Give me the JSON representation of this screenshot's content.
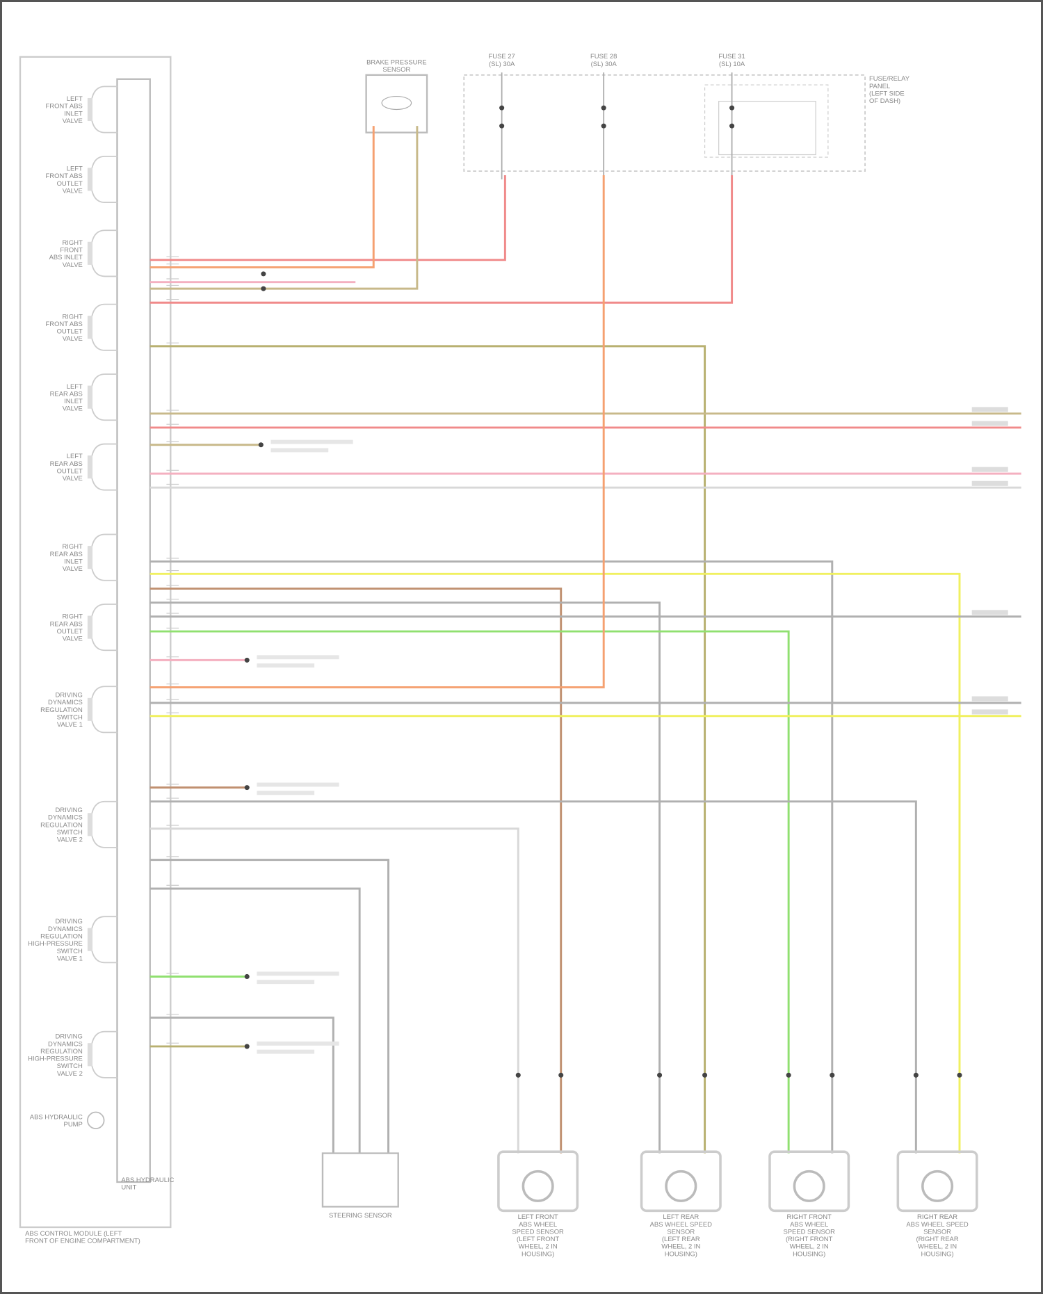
{
  "diagram": {
    "valves": [
      [
        "LEFT",
        "FRONT ABS",
        "INLET",
        "VALVE"
      ],
      [
        "LEFT",
        "FRONT ABS",
        "OUTLET",
        "VALVE"
      ],
      [
        "RIGHT",
        "FRONT",
        "ABS INLET",
        "VALVE"
      ],
      [
        "RIGHT",
        "FRONT ABS",
        "OUTLET",
        "VALVE"
      ],
      [
        "LEFT",
        "REAR ABS",
        "INLET",
        "VALVE"
      ],
      [
        "LEFT",
        "REAR ABS",
        "OUTLET",
        "VALVE"
      ],
      [
        "RIGHT",
        "REAR ABS",
        "INLET",
        "VALVE"
      ],
      [
        "RIGHT",
        "REAR ABS",
        "OUTLET",
        "VALVE"
      ],
      [
        "DRIVING",
        "DYNAMICS",
        "REGULATION",
        "SWITCH",
        "VALVE 1"
      ],
      [
        "DRIVING",
        "DYNAMICS",
        "REGULATION",
        "SWITCH",
        "VALVE 2"
      ],
      [
        "DRIVING",
        "DYNAMICS",
        "REGULATION",
        "HIGH-PRESSURE",
        "SWITCH",
        "VALVE 1"
      ],
      [
        "DRIVING",
        "DYNAMICS",
        "REGULATION",
        "HIGH-PRESSURE",
        "SWITCH",
        "VALVE 2"
      ],
      [
        "ABS HYDRAULIC",
        "PUMP"
      ]
    ],
    "module_label": [
      "ABS HYDRAULIC",
      "UNIT"
    ],
    "module_location": [
      "ABS CONTROL MODULE (LEFT",
      "FRONT OF ENGINE COMPARTMENT)"
    ],
    "brake_pressure_sensor": [
      "BRAKE PRESSURE",
      "SENSOR"
    ],
    "fuses": [
      [
        "FUSE 27",
        "(SL) 30A"
      ],
      [
        "FUSE 28",
        "(SL) 30A"
      ],
      [
        "FUSE 31",
        "(SL) 10A"
      ]
    ],
    "fuse_panel": [
      "FUSE/RELAY",
      "PANEL",
      "(LEFT SIDE",
      "OF DASH)"
    ],
    "sensor_box": "STEERING SENSOR",
    "wheel_sensors": [
      [
        "LEFT FRONT",
        "ABS WHEEL",
        "SPEED SENSOR",
        "(LEFT FRONT",
        "WHEEL, 2 IN",
        "HOUSING)"
      ],
      [
        "LEFT REAR",
        "ABS WHEEL SPEED",
        "SENSOR",
        "(LEFT REAR",
        "WHEEL, 2 IN",
        "HOUSING)"
      ],
      [
        "RIGHT FRONT",
        "ABS WHEEL",
        "SPEED SENSOR",
        "(RIGHT FRONT",
        "WHEEL, 2 IN",
        "HOUSING)"
      ],
      [
        "RIGHT REAR",
        "ABS WHEEL SPEED",
        "SENSOR",
        "(RIGHT REAR",
        "WHEEL, 2 IN",
        "HOUSING)"
      ]
    ],
    "wire_colors": {
      "red": "#f08a8a",
      "orange": "#f5a070",
      "tan": "#c8b98a",
      "olive": "#b8b070",
      "gray": "#b0b0b0",
      "yellow": "#f0f060",
      "green": "#90e070",
      "brown": "#c09070",
      "pink": "#f4b0c0",
      "light": "#d8d8d8"
    }
  }
}
